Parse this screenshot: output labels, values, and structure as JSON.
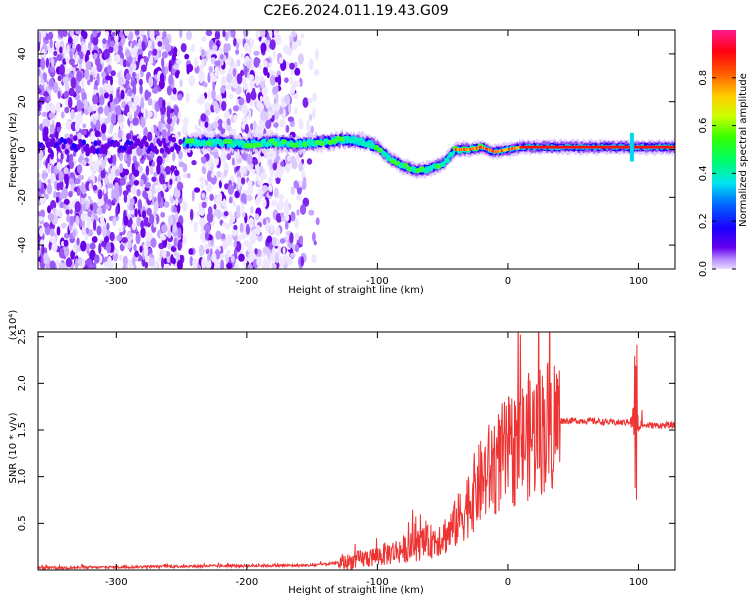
{
  "title": "C2E6.2024.011.19.43.G09",
  "chart_data": [
    {
      "type": "heatmap",
      "xlabel": "Height of straight line (km)",
      "ylabel": "Frequency (Hz)",
      "xlim": [
        -360,
        128
      ],
      "ylim": [
        -50,
        50
      ],
      "xticks": [
        -300,
        -200,
        -100,
        0,
        100
      ],
      "xtick_labels": [
        "-300",
        "-200",
        "-100",
        "0",
        "100"
      ],
      "yticks": [
        -40,
        -20,
        0,
        20,
        40
      ],
      "ytick_labels": [
        "-40",
        "-20",
        "0",
        "20",
        "40"
      ],
      "colorbar": {
        "label": "Normalized spectral amplitude",
        "range": [
          0,
          1
        ],
        "ticks": [
          0.0,
          0.2,
          0.4,
          0.6,
          0.8
        ],
        "tick_labels": [
          "0.0",
          "0.2",
          "0.4",
          "0.6",
          "0.8"
        ]
      },
      "ridge": {
        "description": "frequency of the main spectral ridge (Hz) vs height (km)",
        "x": [
          -245,
          -220,
          -200,
          -180,
          -160,
          -150,
          -140,
          -130,
          -120,
          -110,
          -100,
          -90,
          -80,
          -70,
          -60,
          -50,
          -45,
          -40,
          -35,
          -30,
          -20,
          -10,
          0,
          10,
          30,
          60,
          95,
          128
        ],
        "y": [
          3,
          3,
          2,
          3,
          2,
          3,
          3,
          4,
          4,
          3,
          1,
          -4,
          -7,
          -9,
          -8,
          -6,
          -3,
          0,
          0,
          0,
          1,
          -1,
          0,
          1,
          1,
          1,
          1,
          1
        ]
      },
      "noise_region_x": [
        -360,
        -145
      ]
    },
    {
      "type": "line",
      "xlabel": "Height of straight line (km)",
      "ylabel": "SNR (10 * v/v)",
      "yscale_label": "(x10⁴)",
      "xlim": [
        -360,
        128
      ],
      "ylim": [
        0,
        2.55
      ],
      "xticks": [
        -300,
        -200,
        -100,
        0,
        100
      ],
      "xtick_labels": [
        "-300",
        "-200",
        "-100",
        "0",
        "100"
      ],
      "yticks": [
        0.5,
        1.0,
        1.5,
        2.0,
        2.5
      ],
      "ytick_labels": [
        "0.5",
        "1.0",
        "1.5",
        "2.0",
        "2.5"
      ],
      "color": "#ee3333",
      "series": [
        {
          "name": "SNR",
          "x": [
            -360,
            -250,
            -150,
            -125,
            -100,
            -80,
            -60,
            -45,
            -35,
            -25,
            -15,
            -5,
            5,
            15,
            30,
            40,
            60,
            80,
            90,
            95,
            100,
            105,
            128
          ],
          "y": [
            0.02,
            0.04,
            0.05,
            0.08,
            0.15,
            0.22,
            0.3,
            0.4,
            0.6,
            0.85,
            1.05,
            1.2,
            1.3,
            1.42,
            1.55,
            1.6,
            1.6,
            1.58,
            1.58,
            1.6,
            1.55,
            1.55,
            1.55
          ]
        }
      ],
      "spike_x": 98,
      "spike_range": [
        0.75,
        2.45
      ]
    }
  ]
}
